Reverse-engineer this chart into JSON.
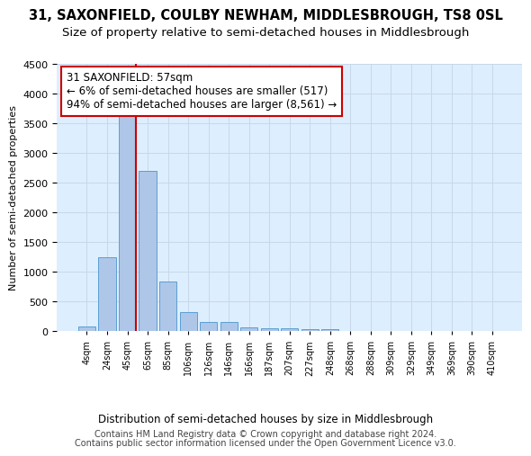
{
  "title": "31, SAXONFIELD, COULBY NEWHAM, MIDDLESBROUGH, TS8 0SL",
  "subtitle": "Size of property relative to semi-detached houses in Middlesbrough",
  "xlabel": "Distribution of semi-detached houses by size in Middlesbrough",
  "ylabel": "Number of semi-detached properties",
  "bin_labels": [
    "4sqm",
    "24sqm",
    "45sqm",
    "65sqm",
    "85sqm",
    "106sqm",
    "126sqm",
    "146sqm",
    "166sqm",
    "187sqm",
    "207sqm",
    "227sqm",
    "248sqm",
    "268sqm",
    "288sqm",
    "309sqm",
    "329sqm",
    "349sqm",
    "369sqm",
    "390sqm",
    "410sqm"
  ],
  "bar_values": [
    90,
    1250,
    3620,
    2700,
    840,
    320,
    160,
    160,
    70,
    60,
    55,
    40,
    30,
    0,
    0,
    0,
    0,
    0,
    0,
    0,
    0
  ],
  "bar_color": "#aec6e8",
  "bar_edge_color": "#5a9fd4",
  "annotation_title": "31 SAXONFIELD: 57sqm",
  "annotation_line1": "← 6% of semi-detached houses are smaller (517)",
  "annotation_line2": "94% of semi-detached houses are larger (8,561) →",
  "annotation_box_color": "#ffffff",
  "annotation_box_edge_color": "#cc0000",
  "vline_color": "#cc0000",
  "ylim": [
    0,
    4500
  ],
  "yticks": [
    0,
    500,
    1000,
    1500,
    2000,
    2500,
    3000,
    3500,
    4000,
    4500
  ],
  "grid_color": "#c8d8e8",
  "background_color": "#ddeeff",
  "footer_line1": "Contains HM Land Registry data © Crown copyright and database right 2024.",
  "footer_line2": "Contains public sector information licensed under the Open Government Licence v3.0.",
  "title_fontsize": 10.5,
  "subtitle_fontsize": 9.5,
  "annotation_fontsize": 8.5,
  "footer_fontsize": 7.0
}
